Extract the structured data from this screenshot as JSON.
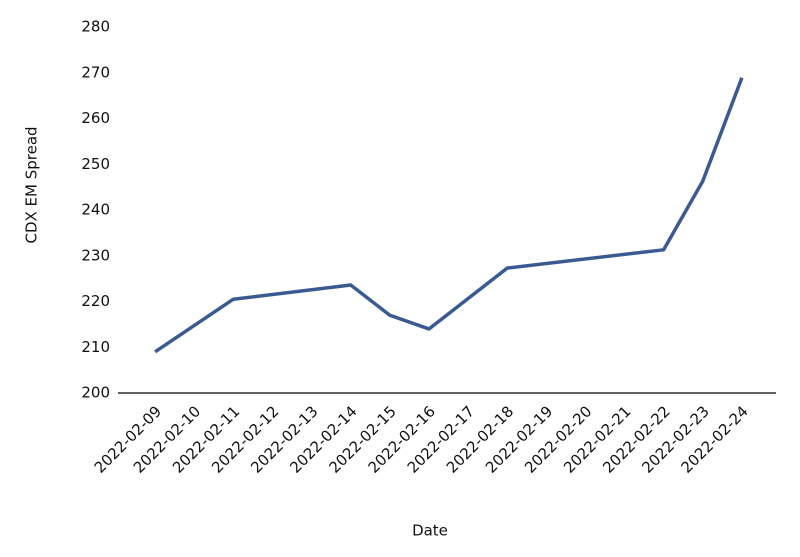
{
  "chart_data": {
    "type": "line",
    "x_label": "Date",
    "y_label": "CDX EM Spread",
    "x": [
      "2022-02-09",
      "2022-02-11",
      "2022-02-14",
      "2022-02-15",
      "2022-02-16",
      "2022-02-18",
      "2022-02-22",
      "2022-02-23",
      "2022-02-24"
    ],
    "series": [
      {
        "name": "CDX EM Spread",
        "color": "#3b5a91",
        "values": [
          209,
          220.5,
          223.6,
          217,
          214,
          227.3,
          231.3,
          246.3,
          268.9
        ]
      }
    ],
    "xlim": [
      "2022-02-08",
      "2022-02-25"
    ],
    "xticks": [
      "2022-02-09",
      "2022-02-10",
      "2022-02-11",
      "2022-02-12",
      "2022-02-13",
      "2022-02-14",
      "2022-02-15",
      "2022-02-16",
      "2022-02-17",
      "2022-02-18",
      "2022-02-19",
      "2022-02-20",
      "2022-02-21",
      "2022-02-22",
      "2022-02-23",
      "2022-02-24"
    ],
    "ylim": [
      200,
      280
    ],
    "yticks": [
      200,
      210,
      220,
      230,
      240,
      250,
      260,
      270,
      280
    ],
    "grid": false,
    "legend": false
  }
}
